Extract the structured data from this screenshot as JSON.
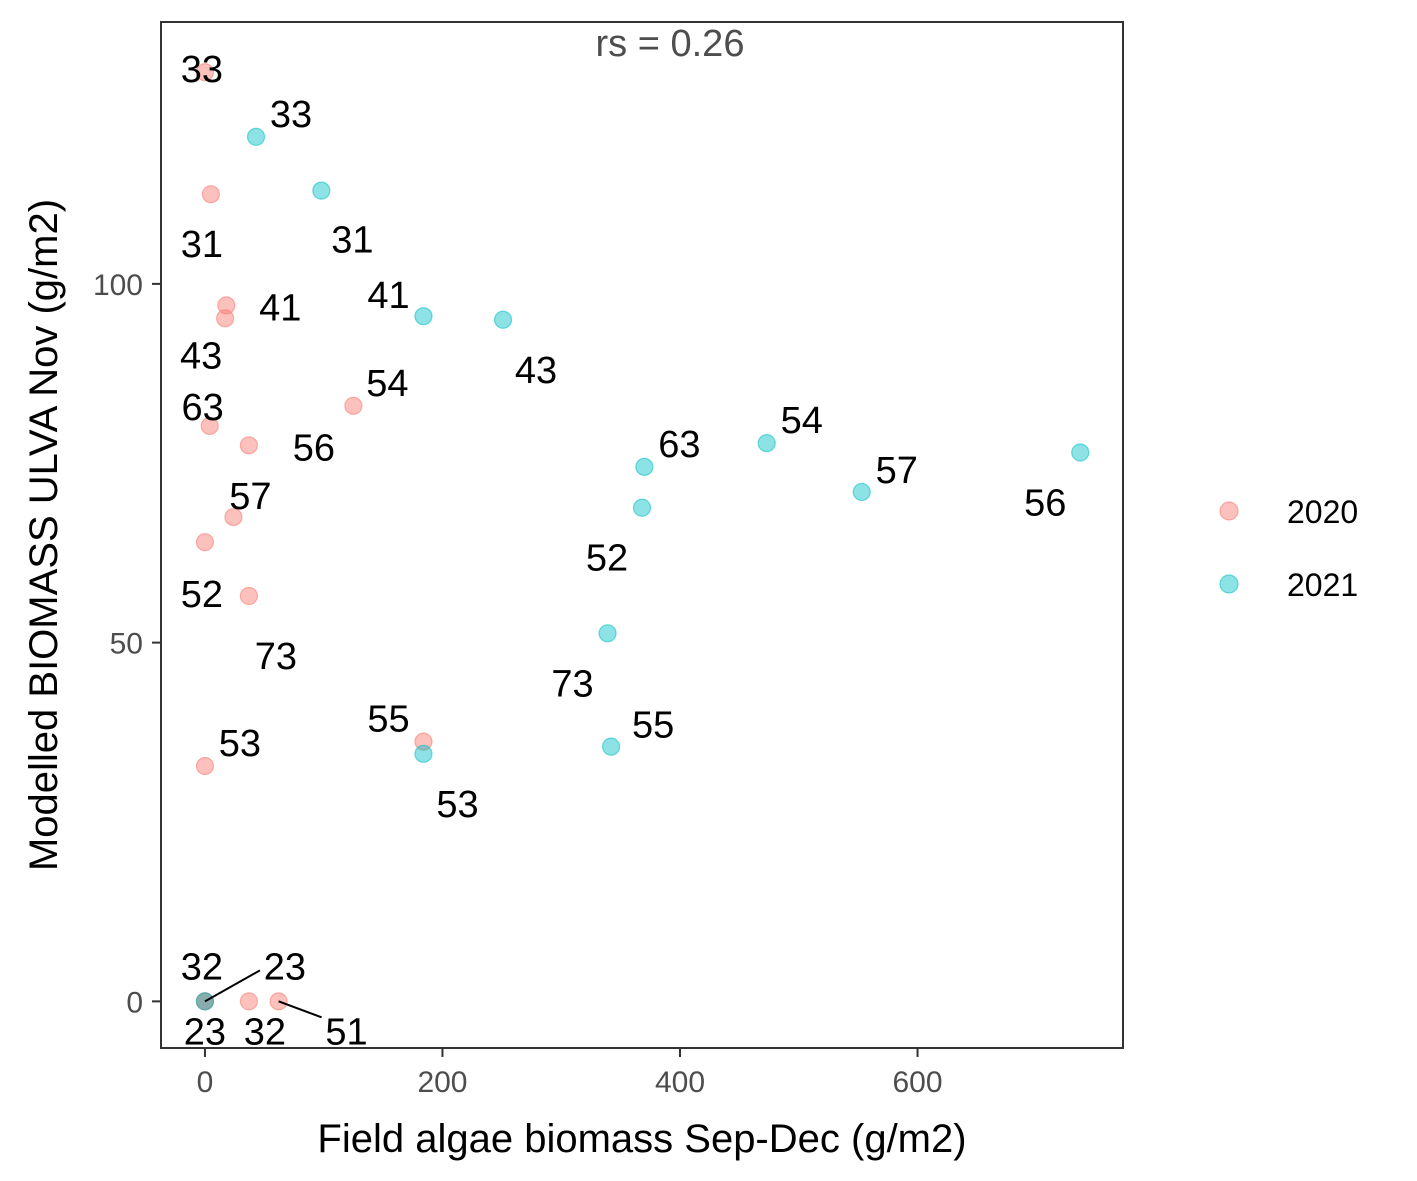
{
  "chart_data": {
    "type": "scatter",
    "xlabel": "Field algae biomass Sep-Dec (g/m2)",
    "ylabel": "Modelled BIOMASS ULVA Nov (g/m2)",
    "annotation": "rs = 0.26",
    "xlim": [
      -37,
      773
    ],
    "ylim": [
      -6.5,
      136.5
    ],
    "x_ticks": [
      0,
      200,
      400,
      600
    ],
    "y_ticks": [
      0,
      50,
      100
    ],
    "grid": false,
    "legend_position": "right",
    "series": [
      {
        "name": "2020",
        "color": "#F8766D",
        "points": [
          {
            "x": 0,
            "y": 129.5,
            "label": "33"
          },
          {
            "x": 5,
            "y": 112.5,
            "label": "31"
          },
          {
            "x": 18,
            "y": 97,
            "label": "41"
          },
          {
            "x": 17,
            "y": 95.2,
            "label": "43"
          },
          {
            "x": 125,
            "y": 83,
            "label": "54"
          },
          {
            "x": 4,
            "y": 80.2,
            "label": "63"
          },
          {
            "x": 37,
            "y": 77.5,
            "label": "56"
          },
          {
            "x": 24,
            "y": 67.5,
            "label": "57"
          },
          {
            "x": 0,
            "y": 64,
            "label": "52"
          },
          {
            "x": 37,
            "y": 56.5,
            "label": "73"
          },
          {
            "x": 184,
            "y": 36.2,
            "label": "55"
          },
          {
            "x": 0,
            "y": 32.8,
            "label": "53"
          },
          {
            "x": 0,
            "y": 0,
            "label": "32"
          },
          {
            "x": 0,
            "y": 0,
            "label": "23"
          },
          {
            "x": 37,
            "y": 0,
            "label": "32"
          },
          {
            "x": 62,
            "y": 0,
            "label": "51"
          }
        ]
      },
      {
        "name": "2021",
        "color": "#00BFC4",
        "points": [
          {
            "x": 43,
            "y": 120.5,
            "label": "33"
          },
          {
            "x": 98,
            "y": 113,
            "label": "31"
          },
          {
            "x": 184,
            "y": 95.5,
            "label": "41"
          },
          {
            "x": 251,
            "y": 95,
            "label": "43"
          },
          {
            "x": 370,
            "y": 74.5,
            "label": "63"
          },
          {
            "x": 473,
            "y": 77.8,
            "label": "54"
          },
          {
            "x": 553,
            "y": 71,
            "label": "57"
          },
          {
            "x": 737,
            "y": 76.5,
            "label": "56"
          },
          {
            "x": 368,
            "y": 68.8,
            "label": "52"
          },
          {
            "x": 339,
            "y": 51.3,
            "label": "73"
          },
          {
            "x": 342,
            "y": 35.5,
            "label": "55"
          },
          {
            "x": 184,
            "y": 34.5,
            "label": "53"
          },
          {
            "x": 0,
            "y": 0,
            "label": "23"
          }
        ]
      }
    ]
  }
}
